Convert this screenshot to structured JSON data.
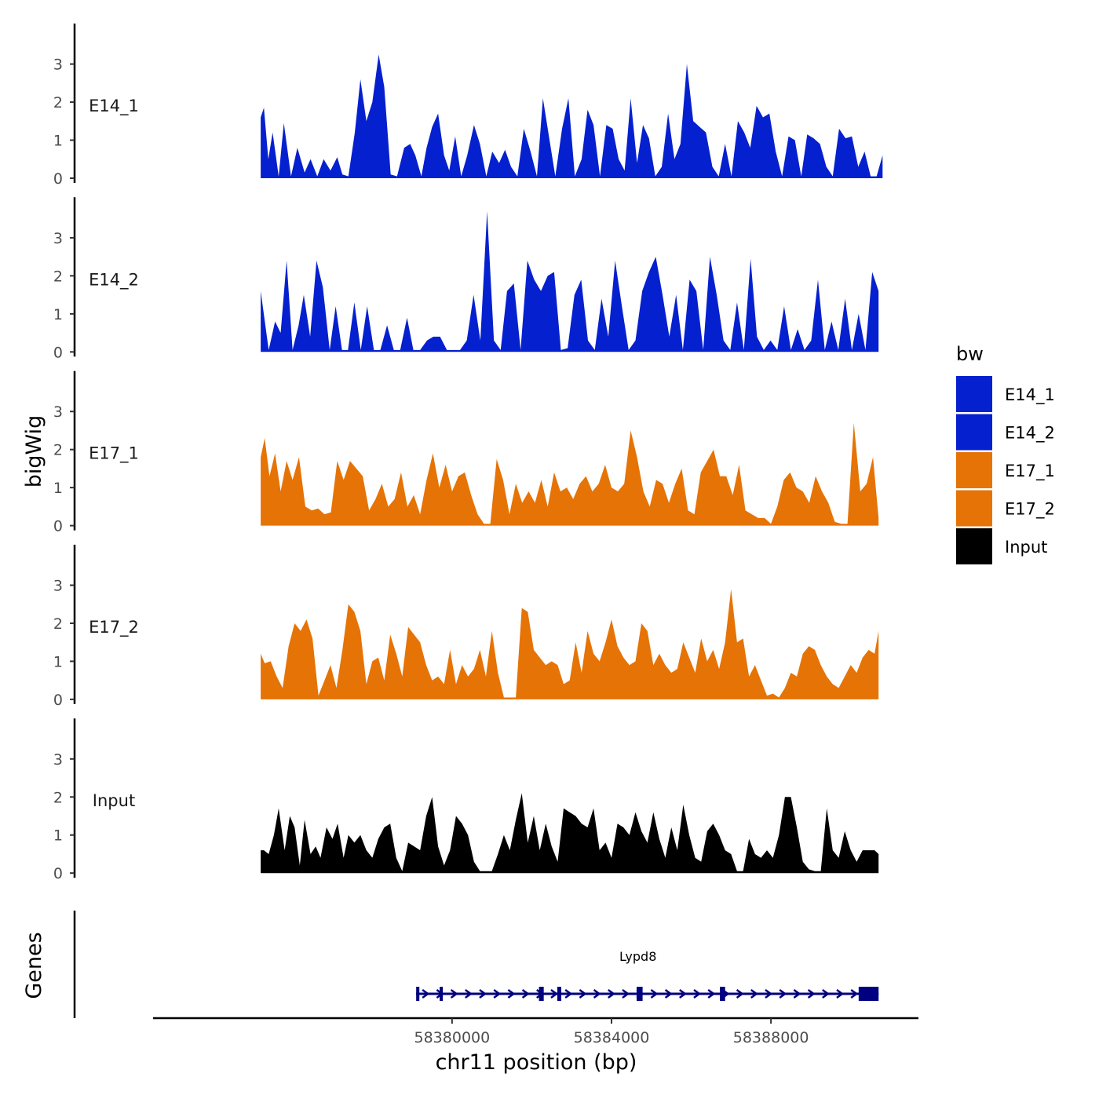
{
  "chart_data": {
    "type": "area",
    "title": "",
    "ylabel": "bigWig",
    "xlabel": "chr11 position (bp)",
    "gene_track_label": "Genes",
    "xlim": [
      58372500,
      58391700
    ],
    "ylim": [
      0,
      3.9
    ],
    "y_ticks": [
      0,
      1,
      2,
      3
    ],
    "x_ticks": [
      58380000,
      58384000,
      58388000
    ],
    "x_tick_labels": [
      "58380000",
      "58384000",
      "58388000"
    ],
    "legend_title": "bw",
    "legend": [
      {
        "name": "E14_1",
        "color": "#0520CF"
      },
      {
        "name": "E14_2",
        "color": "#0520CF"
      },
      {
        "name": "E17_1",
        "color": "#E67305"
      },
      {
        "name": "E17_2",
        "color": "#E67305"
      },
      {
        "name": "Input",
        "color": "#000000"
      }
    ],
    "series": [
      {
        "name": "E14_1",
        "color": "#0520CF",
        "x": [
          58375200,
          58375280,
          58375390,
          58375500,
          58375650,
          58375780,
          58375960,
          58376120,
          58376300,
          58376450,
          58376620,
          58376780,
          58376950,
          58377120,
          58377250,
          58377400,
          58377560,
          58377700,
          58377850,
          58378000,
          58378160,
          58378300,
          58378460,
          58378620,
          58378800,
          58378950,
          58379080,
          58379230,
          58379360,
          58379500,
          58379650,
          58379800,
          58379930,
          58380080,
          58380230,
          58380380,
          58380550,
          58380700,
          58380860,
          58381010,
          58381180,
          58381330,
          58381480,
          58381640,
          58381800,
          58381970,
          58382130,
          58382280,
          58382430,
          58382590,
          58382760,
          58382920,
          58383080,
          58383250,
          58383400,
          58383550,
          58383710,
          58383870,
          58384030,
          58384180,
          58384330,
          58384480,
          58384640,
          58384790,
          58384940,
          58385100,
          58385260,
          58385420,
          58385580,
          58385730,
          58385890,
          58386050,
          58386210,
          58386370,
          58386530,
          58386690,
          58386850,
          58387010,
          58387170,
          58387330,
          58387480,
          58387640,
          58387800,
          58387960,
          58388120,
          58388280,
          58388440,
          58388600,
          58388760,
          58388910,
          58389070,
          58389230,
          58389390,
          58389550,
          58389710,
          58389870,
          58390030,
          58390190,
          58390350,
          58390500,
          58390650,
          58390800
        ],
        "values": [
          1.6,
          1.85,
          0.5,
          1.2,
          0.05,
          1.45,
          0.05,
          0.8,
          0.15,
          0.5,
          0.05,
          0.5,
          0.2,
          0.55,
          0.1,
          0.05,
          1.2,
          2.6,
          1.5,
          2.0,
          3.25,
          2.4,
          0.1,
          0.05,
          0.8,
          0.9,
          0.6,
          0.05,
          0.8,
          1.35,
          1.7,
          0.6,
          0.2,
          1.1,
          0.05,
          0.6,
          1.4,
          0.9,
          0.05,
          0.7,
          0.4,
          0.75,
          0.3,
          0.05,
          1.3,
          0.7,
          0.05,
          2.1,
          1.1,
          0.05,
          1.3,
          2.1,
          0.05,
          0.5,
          1.8,
          1.4,
          0.05,
          1.4,
          1.3,
          0.5,
          0.2,
          2.1,
          0.4,
          1.4,
          1.05,
          0.05,
          0.3,
          1.7,
          0.5,
          0.9,
          3.0,
          1.5,
          1.35,
          1.2,
          0.3,
          0.05,
          0.9,
          0.05,
          1.5,
          1.2,
          0.8,
          1.9,
          1.6,
          1.7,
          0.7,
          0.05,
          1.1,
          1.0,
          0.05,
          1.15,
          1.05,
          0.9,
          0.3,
          0.05,
          1.3,
          1.05,
          1.1,
          0.3,
          0.7,
          0.05,
          0.05,
          0.6
        ]
      },
      {
        "name": "E14_2",
        "color": "#0520CF",
        "x": [
          58375200,
          58375400,
          58375560,
          58375700,
          58375850,
          58376000,
          58376150,
          58376280,
          58376440,
          58376600,
          58376760,
          58376930,
          58377080,
          58377240,
          58377390,
          58377550,
          58377710,
          58377870,
          58378040,
          58378200,
          58378370,
          58378540,
          58378700,
          58378870,
          58379030,
          58379200,
          58379370,
          58379530,
          58379700,
          58379870,
          58380030,
          58380200,
          58380370,
          58380540,
          58380710,
          58380880,
          58381050,
          58381220,
          58381380,
          58381550,
          58381720,
          58381890,
          58382060,
          58382230,
          58382400,
          58382560,
          58382730,
          58382900,
          58383070,
          58383240,
          58383410,
          58383580,
          58383750,
          58383920,
          58384090,
          58384260,
          58384430,
          58384600,
          58384770,
          58384940,
          58385110,
          58385280,
          58385450,
          58385620,
          58385790,
          58385960,
          58386130,
          58386300,
          58386470,
          58386640,
          58386810,
          58386980,
          58387150,
          58387320,
          58387490,
          58387650,
          58387820,
          58387990,
          58388160,
          58388330,
          58388500,
          58388670,
          58388840,
          58389010,
          58389180,
          58389350,
          58389520,
          58389690,
          58389860,
          58390030,
          58390200,
          58390370,
          58390540,
          58390700
        ],
        "values": [
          1.6,
          0.05,
          0.8,
          0.5,
          2.4,
          0.05,
          0.7,
          1.5,
          0.4,
          2.4,
          1.7,
          0.05,
          1.2,
          0.05,
          0.05,
          1.3,
          0.05,
          1.2,
          0.05,
          0.05,
          0.7,
          0.05,
          0.05,
          0.9,
          0.05,
          0.05,
          0.3,
          0.4,
          0.4,
          0.05,
          0.05,
          0.05,
          0.3,
          1.5,
          0.3,
          3.7,
          0.3,
          0.05,
          1.6,
          1.8,
          0.05,
          2.4,
          1.9,
          1.6,
          2.0,
          2.1,
          0.05,
          0.1,
          1.5,
          1.9,
          0.3,
          0.05,
          1.4,
          0.4,
          2.4,
          1.2,
          0.05,
          0.3,
          1.6,
          2.1,
          2.5,
          1.5,
          0.4,
          1.5,
          0.05,
          1.9,
          1.6,
          0.05,
          2.5,
          1.5,
          0.3,
          0.05,
          1.3,
          0.05,
          2.45,
          0.4,
          0.05,
          0.3,
          0.05,
          1.2,
          0.05,
          0.6,
          0.05,
          0.3,
          1.9,
          0.05,
          0.8,
          0.05,
          1.4,
          0.05,
          1.0,
          0.05,
          2.1,
          1.6
        ]
      },
      {
        "name": "E17_1",
        "color": "#E67305",
        "x": [
          58375200,
          58375300,
          58375420,
          58375560,
          58375700,
          58375850,
          58376000,
          58376160,
          58376320,
          58376480,
          58376640,
          58376800,
          58376960,
          58377120,
          58377280,
          58377440,
          58377600,
          58377760,
          58377920,
          58378080,
          58378240,
          58378400,
          58378560,
          58378720,
          58378880,
          58379040,
          58379200,
          58379360,
          58379520,
          58379680,
          58379840,
          58380000,
          58380160,
          58380320,
          58380480,
          58380640,
          58380800,
          58380960,
          58381120,
          58381280,
          58381440,
          58381600,
          58381760,
          58381920,
          58382080,
          58382240,
          58382400,
          58382560,
          58382720,
          58382880,
          58383040,
          58383200,
          58383360,
          58383520,
          58383680,
          58383840,
          58384000,
          58384160,
          58384320,
          58384480,
          58384640,
          58384800,
          58384960,
          58385120,
          58385280,
          58385440,
          58385600,
          58385760,
          58385920,
          58386080,
          58386240,
          58386400,
          58386560,
          58386720,
          58386880,
          58387040,
          58387200,
          58387360,
          58387520,
          58387680,
          58387840,
          58388000,
          58388160,
          58388320,
          58388480,
          58388640,
          58388800,
          58388960,
          58389120,
          58389280,
          58389440,
          58389600,
          58389760,
          58389920,
          58390080,
          58390240,
          58390400,
          58390560,
          58390700
        ],
        "values": [
          1.8,
          2.3,
          1.3,
          1.9,
          0.9,
          1.7,
          1.2,
          1.8,
          0.5,
          0.4,
          0.45,
          0.3,
          0.35,
          1.7,
          1.2,
          1.7,
          1.5,
          1.3,
          0.4,
          0.7,
          1.1,
          0.5,
          0.7,
          1.4,
          0.5,
          0.8,
          0.3,
          1.2,
          1.9,
          1.0,
          1.6,
          0.9,
          1.3,
          1.4,
          0.8,
          0.3,
          0.05,
          0.05,
          1.75,
          1.2,
          0.3,
          1.1,
          0.6,
          0.9,
          0.6,
          1.2,
          0.5,
          1.4,
          0.9,
          1.0,
          0.7,
          1.1,
          1.3,
          0.9,
          1.1,
          1.6,
          1.0,
          0.9,
          1.1,
          2.5,
          1.8,
          0.9,
          0.5,
          1.2,
          1.1,
          0.6,
          1.1,
          1.5,
          0.4,
          0.3,
          1.4,
          1.7,
          2.0,
          1.3,
          1.3,
          0.8,
          1.6,
          0.4,
          0.3,
          0.2,
          0.2,
          0.05,
          0.5,
          1.2,
          1.4,
          1.0,
          0.9,
          0.6,
          1.3,
          0.9,
          0.6,
          0.1,
          0.05,
          0.05,
          2.7,
          0.9,
          1.1,
          1.8,
          0.2
        ]
      },
      {
        "name": "E17_2",
        "color": "#E67305",
        "x": [
          58375200,
          58375300,
          58375450,
          58375600,
          58375750,
          58375900,
          58376050,
          58376200,
          58376350,
          58376500,
          58376650,
          58376800,
          58376950,
          58377100,
          58377250,
          58377400,
          58377550,
          58377700,
          58377850,
          58378000,
          58378150,
          58378300,
          58378450,
          58378600,
          58378750,
          58378900,
          58379050,
          58379200,
          58379350,
          58379500,
          58379650,
          58379800,
          58379950,
          58380100,
          58380250,
          58380400,
          58380550,
          58380700,
          58380850,
          58381000,
          58381150,
          58381300,
          58381450,
          58381600,
          58381750,
          58381900,
          58382050,
          58382200,
          58382350,
          58382500,
          58382650,
          58382800,
          58382950,
          58383100,
          58383250,
          58383400,
          58383550,
          58383700,
          58383850,
          58384000,
          58384150,
          58384300,
          58384450,
          58384600,
          58384750,
          58384900,
          58385050,
          58385200,
          58385350,
          58385500,
          58385650,
          58385800,
          58385950,
          58386100,
          58386250,
          58386400,
          58386550,
          58386700,
          58386850,
          58387000,
          58387150,
          58387300,
          58387450,
          58387600,
          58387750,
          58387900,
          58388050,
          58388200,
          58388350,
          58388500,
          58388650,
          58388800,
          58388950,
          58389100,
          58389250,
          58389400,
          58389550,
          58389700,
          58389850,
          58390000,
          58390150,
          58390300,
          58390450,
          58390600,
          58390700
        ],
        "values": [
          1.2,
          0.95,
          1.0,
          0.6,
          0.3,
          1.4,
          2.0,
          1.8,
          2.1,
          1.6,
          0.1,
          0.5,
          0.9,
          0.3,
          1.3,
          2.5,
          2.3,
          1.8,
          0.4,
          1.0,
          1.1,
          0.5,
          1.7,
          1.2,
          0.6,
          1.9,
          1.7,
          1.5,
          0.9,
          0.5,
          0.6,
          0.4,
          1.3,
          0.4,
          0.9,
          0.6,
          0.8,
          1.3,
          0.6,
          1.8,
          0.7,
          0.05,
          0.05,
          0.05,
          2.4,
          2.3,
          1.3,
          1.1,
          0.9,
          1.0,
          0.9,
          0.4,
          0.5,
          1.5,
          0.7,
          1.8,
          1.2,
          1.0,
          1.5,
          2.1,
          1.4,
          1.1,
          0.9,
          1.0,
          2.0,
          1.8,
          0.9,
          1.2,
          0.9,
          0.7,
          0.8,
          1.5,
          1.1,
          0.7,
          1.6,
          1.0,
          1.3,
          0.8,
          1.5,
          2.9,
          1.5,
          1.6,
          0.6,
          0.9,
          0.5,
          0.1,
          0.15,
          0.05,
          0.3,
          0.7,
          0.6,
          1.2,
          1.4,
          1.3,
          0.9,
          0.6,
          0.4,
          0.3,
          0.6,
          0.9,
          0.7,
          1.1,
          1.3,
          1.2,
          1.8
        ]
      },
      {
        "name": "Input",
        "color": "#000000",
        "x": [
          58375200,
          58375280,
          58375400,
          58375530,
          58375650,
          58375800,
          58375930,
          58376050,
          58376180,
          58376300,
          58376450,
          58376580,
          58376700,
          58376850,
          58377000,
          58377130,
          58377280,
          58377400,
          58377550,
          58377700,
          58377850,
          58378000,
          58378150,
          58378300,
          58378450,
          58378600,
          58378750,
          58378900,
          58379050,
          58379200,
          58379350,
          58379500,
          58379650,
          58379800,
          58379950,
          58380100,
          58380250,
          58380400,
          58380550,
          58380700,
          58380850,
          58381000,
          58381150,
          58381300,
          58381450,
          58381600,
          58381750,
          58381900,
          58382050,
          58382200,
          58382350,
          58382500,
          58382650,
          58382800,
          58382950,
          58383100,
          58383250,
          58383400,
          58383550,
          58383700,
          58383850,
          58384000,
          58384150,
          58384300,
          58384450,
          58384600,
          58384750,
          58384900,
          58385050,
          58385200,
          58385350,
          58385500,
          58385650,
          58385800,
          58385950,
          58386100,
          58386250,
          58386400,
          58386550,
          58386700,
          58386850,
          58387000,
          58387150,
          58387300,
          58387450,
          58387600,
          58387750,
          58387900,
          58388050,
          58388200,
          58388350,
          58388500,
          58388650,
          58388800,
          58388950,
          58389100,
          58389250,
          58389400,
          58389550,
          58389700,
          58389850,
          58390000,
          58390150,
          58390300,
          58390450,
          58390600,
          58390700
        ],
        "values": [
          0.6,
          0.6,
          0.5,
          1.0,
          1.7,
          0.6,
          1.5,
          1.2,
          0.2,
          1.4,
          0.5,
          0.7,
          0.4,
          1.2,
          0.9,
          1.3,
          0.4,
          1.0,
          0.8,
          1.0,
          0.6,
          0.4,
          0.9,
          1.2,
          1.3,
          0.4,
          0.05,
          0.8,
          0.7,
          0.6,
          1.5,
          2.0,
          0.7,
          0.2,
          0.6,
          1.5,
          1.3,
          1.0,
          0.3,
          0.05,
          0.05,
          0.05,
          0.5,
          1.0,
          0.6,
          1.4,
          2.1,
          0.8,
          1.5,
          0.6,
          1.3,
          0.7,
          0.3,
          1.7,
          1.6,
          1.5,
          1.3,
          1.2,
          1.7,
          0.6,
          0.8,
          0.4,
          1.3,
          1.2,
          1.0,
          1.6,
          1.1,
          0.8,
          1.6,
          0.9,
          0.4,
          1.2,
          0.6,
          1.8,
          1.0,
          0.4,
          0.3,
          1.1,
          1.3,
          1.0,
          0.6,
          0.5,
          0.05,
          0.05,
          0.9,
          0.5,
          0.4,
          0.6,
          0.4,
          1.0,
          2.0,
          2.0,
          1.2,
          0.3,
          0.1,
          0.05,
          0.05,
          1.7,
          0.6,
          0.4,
          1.1,
          0.6,
          0.3,
          0.6,
          0.6,
          0.6,
          0.5
        ]
      }
    ],
    "gene": {
      "name": "Lypd8",
      "start": 58379100,
      "end": 58390700,
      "strand": "+",
      "color": "#000080",
      "exons": [
        [
          58379100,
          58379180
        ],
        [
          58379690,
          58379760
        ],
        [
          58382180,
          58382300
        ],
        [
          58382640,
          58382740
        ],
        [
          58384630,
          58384780
        ],
        [
          58386720,
          58386850
        ],
        [
          58390200,
          58390700
        ]
      ]
    }
  }
}
